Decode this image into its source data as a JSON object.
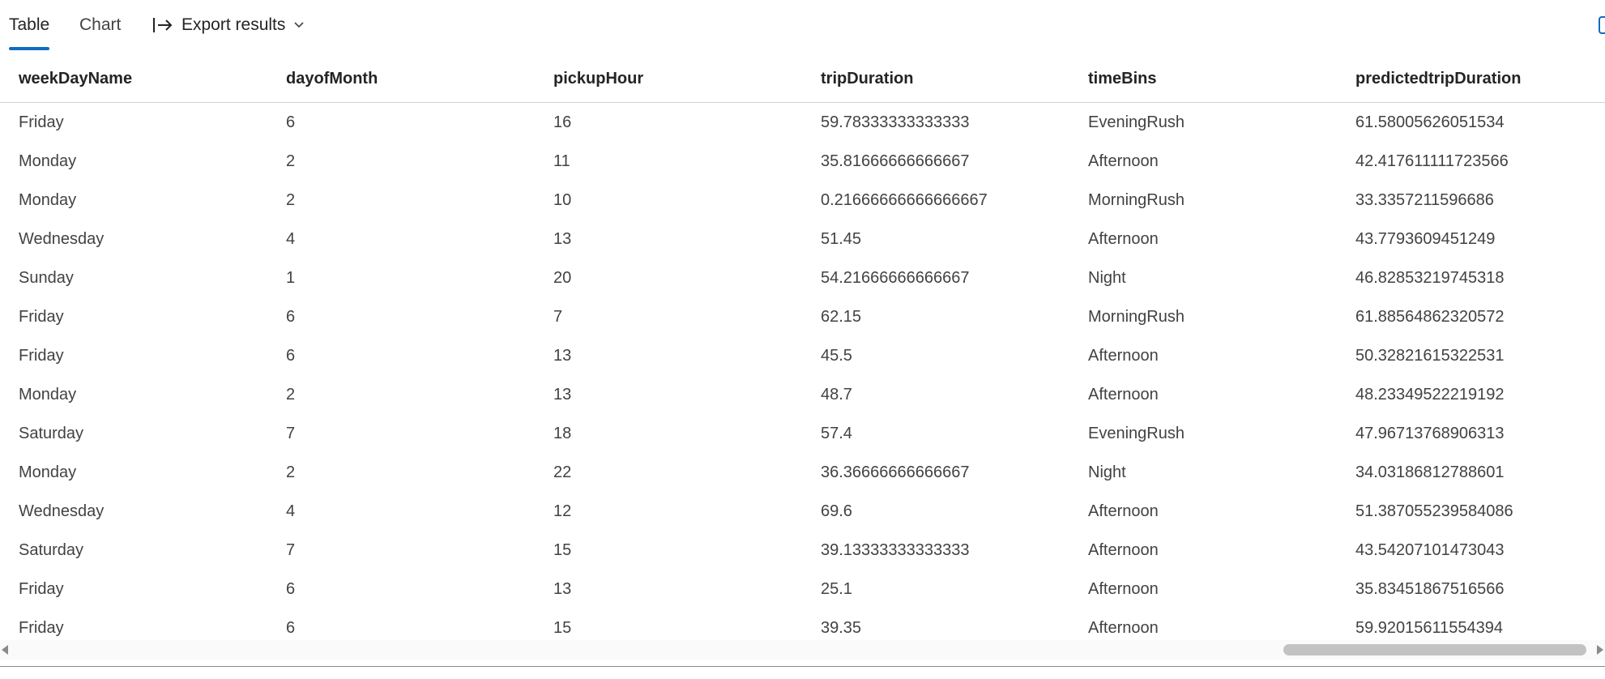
{
  "toolbar": {
    "tabs": [
      {
        "label": "Table",
        "active": true
      },
      {
        "label": "Chart",
        "active": false
      }
    ],
    "export": {
      "label": "Export results",
      "icon": "export-arrow-icon",
      "dropdown_icon": "chevron-down-icon"
    },
    "accent_color": "#0f6cbd"
  },
  "table": {
    "columns": [
      "weekDayName",
      "dayofMonth",
      "pickupHour",
      "tripDuration",
      "timeBins",
      "predictedtripDuration"
    ],
    "rows": [
      [
        "Friday",
        "6",
        "16",
        "59.78333333333333",
        "EveningRush",
        "61.58005626051534"
      ],
      [
        "Monday",
        "2",
        "11",
        "35.81666666666667",
        "Afternoon",
        "42.417611111723566"
      ],
      [
        "Monday",
        "2",
        "10",
        "0.21666666666666667",
        "MorningRush",
        "33.3357211596686"
      ],
      [
        "Wednesday",
        "4",
        "13",
        "51.45",
        "Afternoon",
        "43.7793609451249"
      ],
      [
        "Sunday",
        "1",
        "20",
        "54.21666666666667",
        "Night",
        "46.82853219745318"
      ],
      [
        "Friday",
        "6",
        "7",
        "62.15",
        "MorningRush",
        "61.88564862320572"
      ],
      [
        "Friday",
        "6",
        "13",
        "45.5",
        "Afternoon",
        "50.32821615322531"
      ],
      [
        "Monday",
        "2",
        "13",
        "48.7",
        "Afternoon",
        "48.23349522219192"
      ],
      [
        "Saturday",
        "7",
        "18",
        "57.4",
        "EveningRush",
        "47.96713768906313"
      ],
      [
        "Monday",
        "2",
        "22",
        "36.36666666666667",
        "Night",
        "34.03186812788601"
      ],
      [
        "Wednesday",
        "4",
        "12",
        "69.6",
        "Afternoon",
        "51.387055239584086"
      ],
      [
        "Saturday",
        "7",
        "15",
        "39.13333333333333",
        "Afternoon",
        "43.54207101473043"
      ],
      [
        "Friday",
        "6",
        "13",
        "25.1",
        "Afternoon",
        "35.83451867516566"
      ],
      [
        "Friday",
        "6",
        "15",
        "39.35",
        "Afternoon",
        "59.92015611554394"
      ]
    ]
  }
}
